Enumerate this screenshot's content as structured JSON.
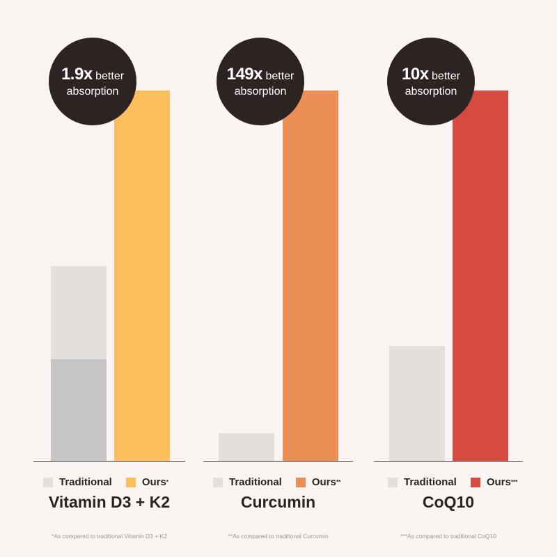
{
  "colors": {
    "traditional": "#e3dfdc",
    "traditional_dark": "#c7c6c5",
    "badge_bg": "#2d2322",
    "text": "#2d2322",
    "footnote": "#9a9392",
    "background": "#faf5f2"
  },
  "chart_data": [
    {
      "type": "bar",
      "product": "Vitamin D3 + K2",
      "categories": [
        "Traditional",
        "Ours"
      ],
      "values": [
        1,
        1.9
      ],
      "ylim": [
        0,
        1.9
      ],
      "traditional_inner_fraction": 0.52,
      "badge": {
        "multiplier": "1.9x",
        "better": "better",
        "absorption": "absorption"
      },
      "legend": [
        {
          "label": "Traditional",
          "sup": ""
        },
        {
          "label": "Ours",
          "sup": "*"
        }
      ],
      "ours_color": "#fdbf5b",
      "footnote": "*As compared to traditional Vitamin D3 + K2"
    },
    {
      "type": "bar",
      "product": "Curcumin",
      "categories": [
        "Traditional",
        "Ours"
      ],
      "values": [
        1,
        149
      ],
      "ylim": [
        0,
        149
      ],
      "display_traditional_fraction": 0.075,
      "badge": {
        "multiplier": "149x",
        "better": "better",
        "absorption": "absorption"
      },
      "legend": [
        {
          "label": "Traditional",
          "sup": ""
        },
        {
          "label": "Ours",
          "sup": "**"
        }
      ],
      "ours_color": "#ec8f57",
      "footnote": "**As compared to traditional Curcumin"
    },
    {
      "type": "bar",
      "product": "CoQ10",
      "categories": [
        "Traditional",
        "Ours"
      ],
      "values": [
        1,
        10
      ],
      "ylim": [
        0,
        10
      ],
      "display_traditional_fraction": 0.31,
      "badge": {
        "multiplier": "10x",
        "better": "better",
        "absorption": "absorption"
      },
      "legend": [
        {
          "label": "Traditional",
          "sup": ""
        },
        {
          "label": "Ours",
          "sup": "***"
        }
      ],
      "ours_color": "#d64b40",
      "footnote": "***As compared to traditional CoQ10"
    }
  ]
}
